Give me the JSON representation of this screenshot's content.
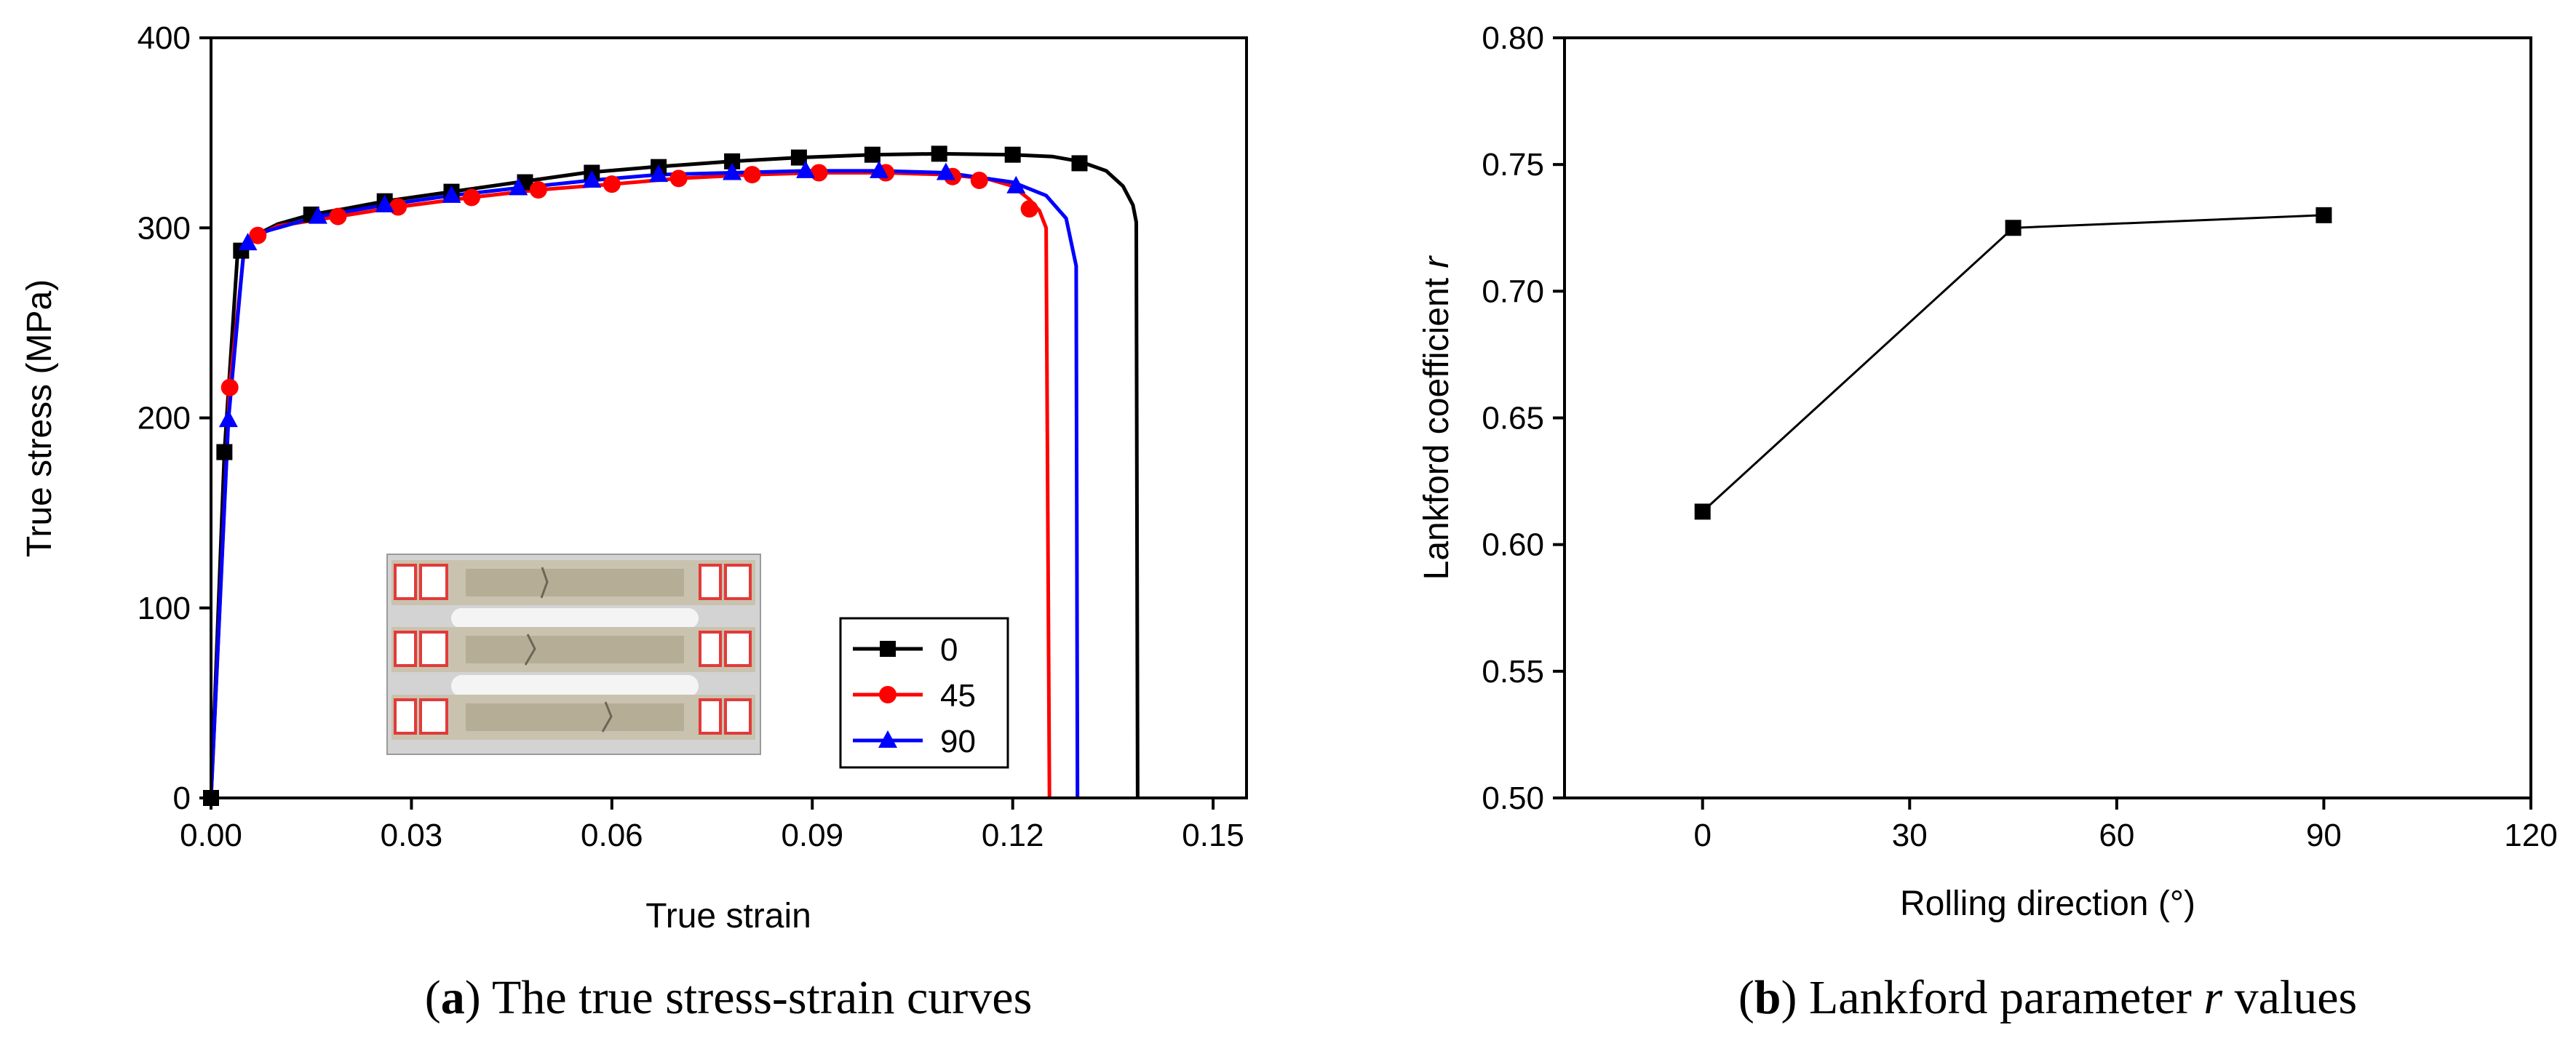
{
  "chart_data": [
    {
      "type": "line",
      "panel": "a",
      "title": "",
      "caption_prefix": "(",
      "caption_letter": "a",
      "caption_text": ") The true stress-strain curves",
      "xlabel": "True strain",
      "ylabel": "True stress (MPa)",
      "xlim": [
        0,
        0.155
      ],
      "ylim": [
        0,
        400
      ],
      "xticks": [
        0,
        0.03,
        0.06,
        0.09,
        0.12,
        0.15
      ],
      "xtick_labels": [
        "0.00",
        "0.03",
        "0.06",
        "0.09",
        "0.12",
        "0.15"
      ],
      "yticks": [
        0,
        100,
        200,
        300,
        400
      ],
      "ytick_labels": [
        "0",
        "100",
        "200",
        "300",
        "400"
      ],
      "legend_position": "bottom-right",
      "inset_image": "fractured tensile specimens photo",
      "series": [
        {
          "name": "0",
          "color": "#000000",
          "marker": "square",
          "curve": [
            [
              0,
              0
            ],
            [
              0.002,
              182
            ],
            [
              0.004,
              288
            ],
            [
              0.006,
              295
            ],
            [
              0.01,
              302
            ],
            [
              0.015,
              307
            ],
            [
              0.02,
              310
            ],
            [
              0.026,
              314
            ],
            [
              0.036,
              319
            ],
            [
              0.046,
              324
            ],
            [
              0.056,
              329
            ],
            [
              0.066,
              332
            ],
            [
              0.078,
              335
            ],
            [
              0.088,
              337
            ],
            [
              0.099,
              338.5
            ],
            [
              0.109,
              339
            ],
            [
              0.12,
              338.5
            ],
            [
              0.126,
              337.5
            ],
            [
              0.13,
              335
            ],
            [
              0.134,
              330
            ],
            [
              0.1365,
              322
            ],
            [
              0.138,
              312
            ],
            [
              0.1385,
              303
            ],
            [
              0.1387,
              0
            ]
          ],
          "markers": [
            [
              0,
              0
            ],
            [
              0.002,
              182
            ],
            [
              0.0045,
              288
            ],
            [
              0.015,
              307
            ],
            [
              0.026,
              314
            ],
            [
              0.036,
              319
            ],
            [
              0.047,
              324
            ],
            [
              0.057,
              329
            ],
            [
              0.067,
              332
            ],
            [
              0.078,
              335
            ],
            [
              0.088,
              337
            ],
            [
              0.099,
              338.5
            ],
            [
              0.109,
              339
            ],
            [
              0.12,
              338.5
            ],
            [
              0.13,
              334
            ]
          ]
        },
        {
          "name": "45",
          "color": "#ff0000",
          "marker": "circle",
          "curve": [
            [
              0,
              0
            ],
            [
              0.0028,
              216
            ],
            [
              0.005,
              290
            ],
            [
              0.007,
              296
            ],
            [
              0.01,
              301
            ],
            [
              0.019,
              306
            ],
            [
              0.028,
              311
            ],
            [
              0.039,
              316
            ],
            [
              0.049,
              320
            ],
            [
              0.06,
              323
            ],
            [
              0.07,
              326
            ],
            [
              0.081,
              328
            ],
            [
              0.091,
              329
            ],
            [
              0.101,
              329
            ],
            [
              0.11,
              328
            ],
            [
              0.116,
              326
            ],
            [
              0.12,
              322
            ],
            [
              0.1225,
              315
            ],
            [
              0.124,
              309
            ],
            [
              0.125,
              300
            ],
            [
              0.1255,
              0
            ]
          ],
          "markers": [
            [
              0.0028,
              216
            ],
            [
              0.007,
              296
            ],
            [
              0.019,
              306
            ],
            [
              0.028,
              311
            ],
            [
              0.039,
              316
            ],
            [
              0.049,
              320
            ],
            [
              0.06,
              323
            ],
            [
              0.07,
              326
            ],
            [
              0.081,
              328
            ],
            [
              0.091,
              329
            ],
            [
              0.101,
              329
            ],
            [
              0.111,
              327
            ],
            [
              0.115,
              325
            ],
            [
              0.1225,
              310
            ]
          ]
        },
        {
          "name": "90",
          "color": "#0000ff",
          "marker": "triangle",
          "curve": [
            [
              0,
              0
            ],
            [
              0.0026,
              199
            ],
            [
              0.005,
              292
            ],
            [
              0.008,
              298
            ],
            [
              0.016,
              306
            ],
            [
              0.026,
              312
            ],
            [
              0.036,
              317
            ],
            [
              0.046,
              321
            ],
            [
              0.057,
              325
            ],
            [
              0.067,
              328
            ],
            [
              0.078,
              329
            ],
            [
              0.089,
              330
            ],
            [
              0.1,
              330
            ],
            [
              0.11,
              329
            ],
            [
              0.12,
              324
            ],
            [
              0.125,
              317
            ],
            [
              0.128,
              305
            ],
            [
              0.1295,
              280
            ],
            [
              0.1297,
              0
            ]
          ],
          "markers": [
            [
              0.0026,
              199
            ],
            [
              0.0055,
              292
            ],
            [
              0.016,
              306
            ],
            [
              0.026,
              312
            ],
            [
              0.036,
              317
            ],
            [
              0.046,
              321
            ],
            [
              0.057,
              325
            ],
            [
              0.067,
              328
            ],
            [
              0.078,
              329
            ],
            [
              0.089,
              330
            ],
            [
              0.1,
              330
            ],
            [
              0.11,
              329
            ],
            [
              0.1205,
              322
            ]
          ]
        }
      ]
    },
    {
      "type": "line",
      "panel": "b",
      "title": "",
      "caption_prefix": "(",
      "caption_letter": "b",
      "caption_text": ") Lankford parameter ",
      "caption_var": "r",
      "caption_suffix": " values",
      "xlabel": "Rolling direction (°)",
      "ylabel": "Lankford coefficient ",
      "ylabel_var": "r",
      "xlim": [
        -20,
        120
      ],
      "ylim": [
        0.5,
        0.8
      ],
      "xticks": [
        0,
        30,
        60,
        90,
        120
      ],
      "xtick_labels": [
        "0",
        "30",
        "60",
        "90",
        "120"
      ],
      "yticks": [
        0.5,
        0.55,
        0.6,
        0.65,
        0.7,
        0.75,
        0.8
      ],
      "ytick_labels": [
        "0.50",
        "0.55",
        "0.60",
        "0.65",
        "0.70",
        "0.75",
        "0.80"
      ],
      "series": [
        {
          "name": "r",
          "color": "#000000",
          "marker": "square",
          "x": [
            0,
            45,
            90
          ],
          "y": [
            0.613,
            0.725,
            0.73
          ]
        }
      ]
    }
  ]
}
